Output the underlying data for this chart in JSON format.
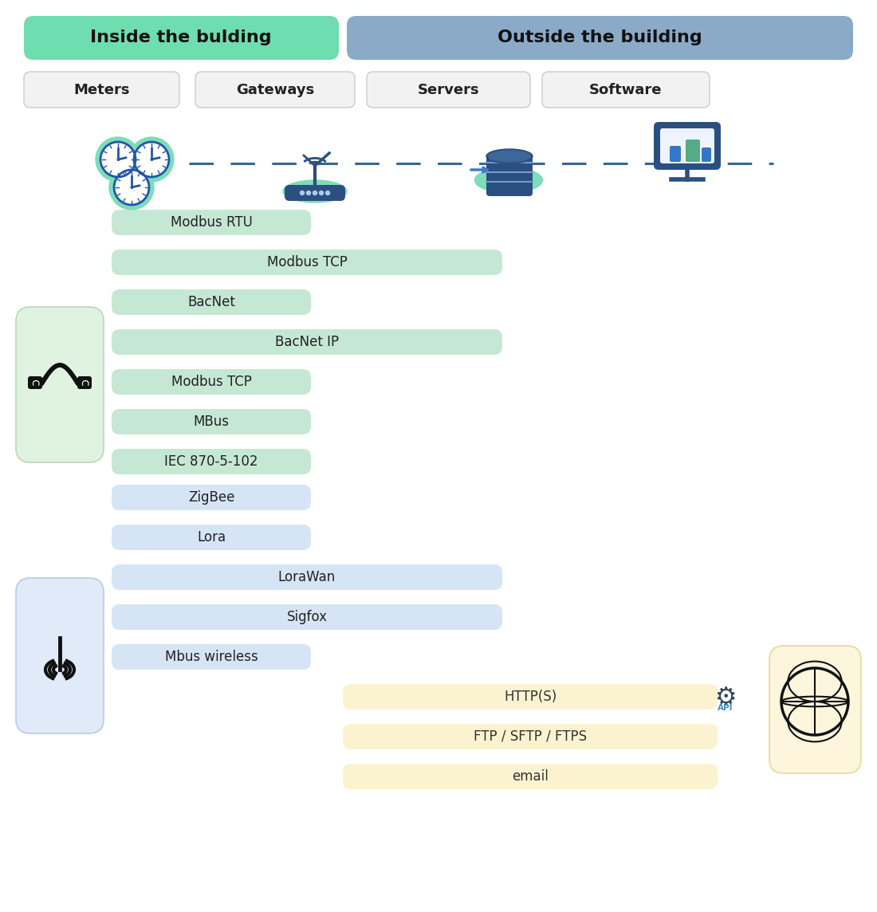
{
  "title_left": "Inside the bulding",
  "title_right": "Outside the building",
  "title_left_color": "#6EDDB0",
  "title_right_color": "#8AAAC8",
  "col_headers": [
    "Meters",
    "Gateways",
    "Servers",
    "Software"
  ],
  "col_header_bg": "#F2F2F2",
  "col_header_border": "#CCCCCC",
  "wired_protocols": [
    {
      "label": "Modbus RTU",
      "wide": false,
      "color": "#C5E8D5"
    },
    {
      "label": "Modbus TCP",
      "wide": true,
      "color": "#C5E8D5"
    },
    {
      "label": "BacNet",
      "wide": false,
      "color": "#C5E8D5"
    },
    {
      "label": "BacNet IP",
      "wide": true,
      "color": "#C5E8D5"
    },
    {
      "label": "Modbus TCP",
      "wide": false,
      "color": "#C5E8D5"
    },
    {
      "label": "MBus",
      "wide": false,
      "color": "#C5E8D5"
    },
    {
      "label": "IEC 870-5-102",
      "wide": false,
      "color": "#C5E8D5"
    }
  ],
  "wireless_protocols": [
    {
      "label": "ZigBee",
      "wide": false,
      "color": "#D5E5F5"
    },
    {
      "label": "Lora",
      "wide": false,
      "color": "#D5E5F5"
    },
    {
      "label": "LoraWan",
      "wide": true,
      "color": "#D5E5F5"
    },
    {
      "label": "Sigfox",
      "wide": true,
      "color": "#D5E5F5"
    },
    {
      "label": "Mbus wireless",
      "wide": false,
      "color": "#D5E5F5"
    }
  ],
  "outside_protocols": [
    {
      "label": "HTTP(S)",
      "color": "#FBF3D0"
    },
    {
      "label": "FTP / SFTP / FTPS",
      "color": "#FBF3D0"
    },
    {
      "label": "email",
      "color": "#FBF3D0"
    }
  ],
  "wired_box_color": "#E0F2E0",
  "wired_box_border": "#B8D8B8",
  "wireless_box_color": "#E0EAF8",
  "wireless_box_border": "#B8CCE0",
  "outside_box_color": "#FDF5DC",
  "outside_box_border": "#E8D898",
  "bg_color": "#FFFFFF",
  "dashed_color": "#336699"
}
